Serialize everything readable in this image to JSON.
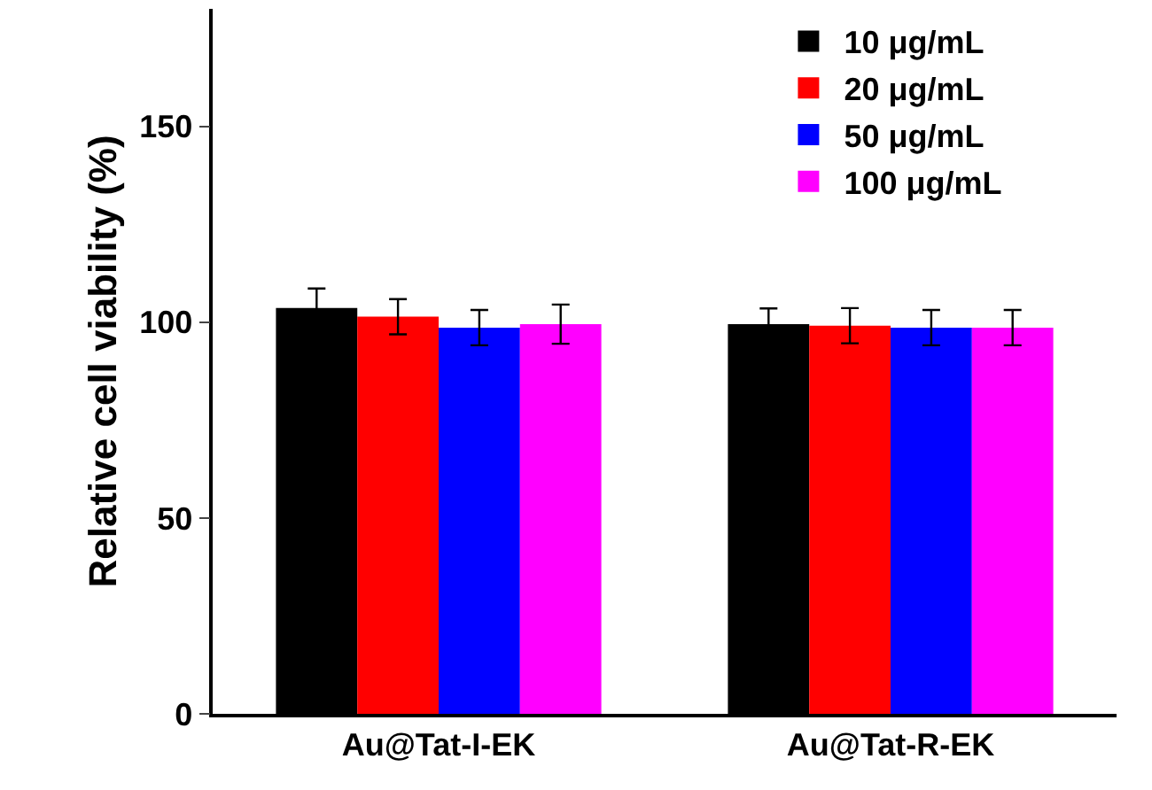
{
  "chart_data": {
    "type": "bar",
    "ylabel": "Relative cell viability (%)",
    "categories": [
      "Au@Tat-I-EK",
      "Au@Tat-R-EK"
    ],
    "series": [
      {
        "name": "10 μg/mL",
        "color": "#000000",
        "values": [
          103.6,
          99.5
        ],
        "errors": [
          5,
          4
        ]
      },
      {
        "name": "20 μg/mL",
        "color": "#ff0000",
        "values": [
          101.4,
          99.1
        ],
        "errors": [
          4.5,
          4.5
        ]
      },
      {
        "name": "50 μg/mL",
        "color": "#0000ff",
        "values": [
          98.6,
          98.6
        ],
        "errors": [
          4.5,
          4.5
        ]
      },
      {
        "name": "100 μg/mL",
        "color": "#ff00ff",
        "values": [
          99.5,
          98.6
        ],
        "errors": [
          5,
          4.5
        ]
      }
    ],
    "ylim": [
      0,
      180
    ],
    "yticks": [
      0,
      50,
      100,
      150
    ],
    "grid": false,
    "legend": "top right"
  }
}
